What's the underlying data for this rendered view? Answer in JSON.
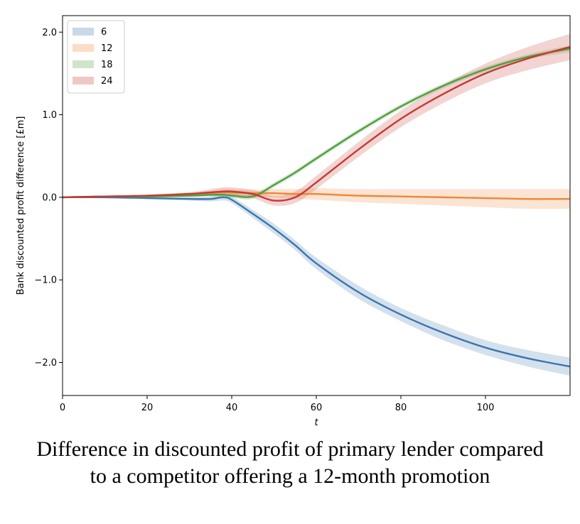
{
  "caption": "Difference in discounted profit of primary lender compared to a competitor offering a 12-month promotion",
  "chart_data": {
    "type": "line",
    "title": "",
    "xlabel": "t",
    "ylabel": "Bank discounted profit difference [£m]",
    "xlim": [
      0,
      120
    ],
    "ylim": [
      -2.4,
      2.2
    ],
    "xticks": [
      0,
      20,
      40,
      60,
      80,
      100
    ],
    "yticks": [
      -2.0,
      -1.0,
      0.0,
      1.0,
      2.0
    ],
    "xtick_labels": [
      "0",
      "20",
      "40",
      "60",
      "80",
      "100"
    ],
    "ytick_labels": [
      "−2.0",
      "−1.0",
      "0.0",
      "1.0",
      "2.0"
    ],
    "legend_position": "top-left",
    "x": [
      0,
      10,
      20,
      30,
      35,
      38,
      40,
      45,
      50,
      55,
      60,
      70,
      80,
      90,
      100,
      110,
      120
    ],
    "series": [
      {
        "name": "6",
        "color": "#3b75af",
        "values": [
          0,
          0.0,
          -0.01,
          -0.02,
          -0.02,
          0.0,
          -0.03,
          -0.2,
          -0.38,
          -0.58,
          -0.8,
          -1.15,
          -1.42,
          -1.64,
          -1.82,
          -1.95,
          -2.05
        ],
        "band": [
          0.0,
          0.0,
          0.01,
          0.02,
          0.03,
          0.04,
          0.04,
          0.05,
          0.06,
          0.06,
          0.07,
          0.08,
          0.08,
          0.09,
          0.09,
          0.1,
          0.11
        ]
      },
      {
        "name": "12",
        "color": "#ef8636",
        "values": [
          0,
          0.01,
          0.02,
          0.04,
          0.05,
          0.06,
          0.06,
          0.05,
          0.05,
          0.04,
          0.04,
          0.02,
          0.01,
          0.0,
          -0.01,
          -0.02,
          -0.02
        ],
        "band": [
          0.0,
          0.0,
          0.01,
          0.02,
          0.03,
          0.04,
          0.04,
          0.04,
          0.05,
          0.06,
          0.07,
          0.08,
          0.09,
          0.1,
          0.11,
          0.12,
          0.12
        ]
      },
      {
        "name": "18",
        "color": "#519e3e",
        "values": [
          0,
          0.01,
          0.01,
          0.02,
          0.03,
          0.03,
          0.02,
          0.01,
          0.15,
          0.3,
          0.47,
          0.8,
          1.1,
          1.35,
          1.55,
          1.7,
          1.8
        ],
        "band": [
          0.0,
          0.0,
          0.01,
          0.02,
          0.02,
          0.03,
          0.03,
          0.03,
          0.03,
          0.03,
          0.03,
          0.03,
          0.03,
          0.03,
          0.03,
          0.03,
          0.04
        ]
      },
      {
        "name": "24",
        "color": "#c53a32",
        "values": [
          0,
          0.01,
          0.02,
          0.04,
          0.06,
          0.07,
          0.07,
          0.04,
          -0.04,
          0.0,
          0.18,
          0.58,
          0.95,
          1.25,
          1.5,
          1.68,
          1.82
        ],
        "band": [
          0.0,
          0.0,
          0.01,
          0.02,
          0.04,
          0.05,
          0.05,
          0.05,
          0.06,
          0.07,
          0.08,
          0.09,
          0.1,
          0.11,
          0.12,
          0.14,
          0.16
        ]
      }
    ]
  }
}
